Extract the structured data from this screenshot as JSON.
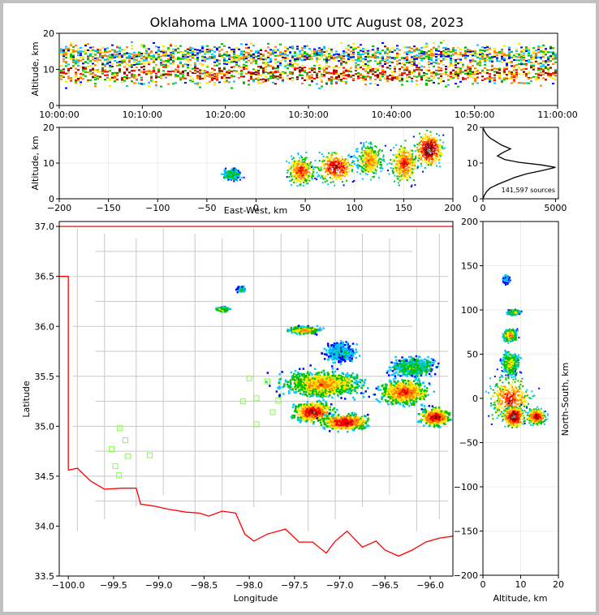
{
  "title": "Oklahoma LMA 1000-1100 UTC August 08, 2023",
  "colors": {
    "border": "#ff0000",
    "county_lines": "#c8c8c8",
    "station_marker": "#80ff40",
    "density_scale": [
      "#0000ff",
      "#00c8ff",
      "#00c000",
      "#ffe600",
      "#ff8000",
      "#ff0000",
      "#800000",
      "#808080",
      "#ffffff"
    ]
  },
  "chart_data": [
    {
      "panel": "altitude-time",
      "type": "heatmap",
      "xlabel": "",
      "ylabel": "Altitude, km",
      "xlim": [
        "10:00:00",
        "11:00:00"
      ],
      "ylim": [
        0,
        20
      ],
      "x_ticks": [
        "10:00:00",
        "10:10:00",
        "10:20:00",
        "10:30:00",
        "10:40:00",
        "10:50:00",
        "11:00:00"
      ],
      "y_ticks": [
        0,
        10,
        20
      ],
      "description_values": {
        "peak_altitude_km": 9,
        "upper_band_altitude_km": 14
      }
    },
    {
      "panel": "altitude-east-west",
      "type": "heatmap",
      "xlabel": "East-West, km",
      "ylabel": "Altitude, km",
      "xlim": [
        -200,
        200
      ],
      "ylim": [
        0,
        20
      ],
      "x_ticks": [
        -200,
        -150,
        -100,
        -50,
        0,
        50,
        100,
        150,
        200
      ],
      "y_ticks": [
        0,
        10,
        20
      ],
      "clusters": [
        {
          "x": -25,
          "y": 7,
          "w": 20,
          "h": 4,
          "level": 2
        },
        {
          "x": 45,
          "y": 8,
          "w": 30,
          "h": 10,
          "level": 5
        },
        {
          "x": 80,
          "y": 9,
          "w": 40,
          "h": 11,
          "level": 6
        },
        {
          "x": 115,
          "y": 11,
          "w": 30,
          "h": 12,
          "level": 4
        },
        {
          "x": 150,
          "y": 10,
          "w": 30,
          "h": 14,
          "level": 5
        },
        {
          "x": 175,
          "y": 14,
          "w": 30,
          "h": 12,
          "level": 7
        }
      ]
    },
    {
      "panel": "altitude-histogram",
      "type": "line",
      "xlabel": "",
      "ylabel": "",
      "xlim": [
        0,
        5200
      ],
      "ylim": [
        0,
        20
      ],
      "x_ticks": [
        0,
        5000
      ],
      "y_ticks": [
        0,
        10,
        20
      ],
      "annotation": "141,597 sources",
      "x": [
        0,
        100,
        250,
        500,
        1000,
        1600,
        2200,
        3000,
        4200,
        5000,
        4000,
        2500,
        1500,
        1000,
        1400,
        1900,
        1300,
        900,
        500,
        250,
        100,
        0
      ],
      "y": [
        0,
        1,
        2,
        3,
        4,
        5,
        6,
        7,
        8,
        8.8,
        9.5,
        10.2,
        11,
        12,
        13,
        14,
        15,
        16,
        17,
        18,
        19,
        20
      ]
    },
    {
      "panel": "plan-view",
      "type": "heatmap",
      "xlabel": "Longitude",
      "ylabel": "Latitude",
      "xlim": [
        -100.1,
        -95.75
      ],
      "ylim": [
        33.5,
        37.05
      ],
      "x_ticks": [
        "−100.0",
        "−99.5",
        "−99.0",
        "−98.5",
        "−98.0",
        "−97.5",
        "−97.0",
        "−96.5",
        "−96.0"
      ],
      "y_ticks": [
        "33.5",
        "34.0",
        "34.5",
        "35.0",
        "35.5",
        "36.0",
        "36.5",
        "37.0"
      ],
      "stations": [
        {
          "lon": -99.43,
          "lat": 34.98
        },
        {
          "lon": -99.37,
          "lat": 34.86
        },
        {
          "lon": -99.52,
          "lat": 34.77
        },
        {
          "lon": -99.34,
          "lat": 34.7
        },
        {
          "lon": -99.48,
          "lat": 34.6
        },
        {
          "lon": -99.44,
          "lat": 34.51
        },
        {
          "lon": -99.1,
          "lat": 34.71
        },
        {
          "lon": -98.0,
          "lat": 35.48
        },
        {
          "lon": -97.8,
          "lat": 35.45
        },
        {
          "lon": -97.92,
          "lat": 35.28
        },
        {
          "lon": -98.07,
          "lat": 35.25
        },
        {
          "lon": -97.68,
          "lat": 35.26
        },
        {
          "lon": -97.74,
          "lat": 35.14
        },
        {
          "lon": -97.92,
          "lat": 35.02
        }
      ],
      "clusters": [
        {
          "lon": -98.1,
          "lat": 36.38,
          "w": 0.08,
          "h": 0.05,
          "level": 2
        },
        {
          "lon": -98.3,
          "lat": 36.18,
          "w": 0.14,
          "h": 0.05,
          "level": 3
        },
        {
          "lon": -97.4,
          "lat": 35.97,
          "w": 0.35,
          "h": 0.08,
          "level": 4
        },
        {
          "lon": -97.0,
          "lat": 35.75,
          "w": 0.35,
          "h": 0.2,
          "level": 1
        },
        {
          "lon": -97.2,
          "lat": 35.43,
          "w": 0.9,
          "h": 0.28,
          "level": 4
        },
        {
          "lon": -97.3,
          "lat": 35.15,
          "w": 0.45,
          "h": 0.2,
          "level": 6
        },
        {
          "lon": -96.95,
          "lat": 35.05,
          "w": 0.5,
          "h": 0.17,
          "level": 6
        },
        {
          "lon": -96.3,
          "lat": 35.35,
          "w": 0.55,
          "h": 0.25,
          "level": 5
        },
        {
          "lon": -95.95,
          "lat": 35.1,
          "w": 0.35,
          "h": 0.18,
          "level": 6
        },
        {
          "lon": -96.2,
          "lat": 35.6,
          "w": 0.5,
          "h": 0.2,
          "level": 2
        }
      ]
    },
    {
      "panel": "north-south-altitude",
      "type": "heatmap",
      "xlabel": "Altitude, km",
      "ylabel": "North-South, km",
      "xlim": [
        0,
        20
      ],
      "ylim": [
        -200,
        200
      ],
      "x_ticks": [
        0,
        10,
        20
      ],
      "y_ticks": [
        -200,
        -150,
        -100,
        -50,
        0,
        50,
        100,
        150,
        200
      ],
      "clusters": [
        {
          "x": 6,
          "y": 135,
          "w": 2,
          "h": 10,
          "level": 1
        },
        {
          "x": 8,
          "y": 98,
          "w": 4,
          "h": 6,
          "level": 3
        },
        {
          "x": 7,
          "y": 72,
          "w": 5,
          "h": 15,
          "level": 4
        },
        {
          "x": 7,
          "y": 40,
          "w": 6,
          "h": 30,
          "level": 3
        },
        {
          "x": 7,
          "y": 0,
          "w": 14,
          "h": 55,
          "level": 5
        },
        {
          "x": 8,
          "y": -20,
          "w": 7,
          "h": 25,
          "level": 7
        },
        {
          "x": 14,
          "y": -20,
          "w": 6,
          "h": 20,
          "level": 6
        }
      ]
    }
  ]
}
